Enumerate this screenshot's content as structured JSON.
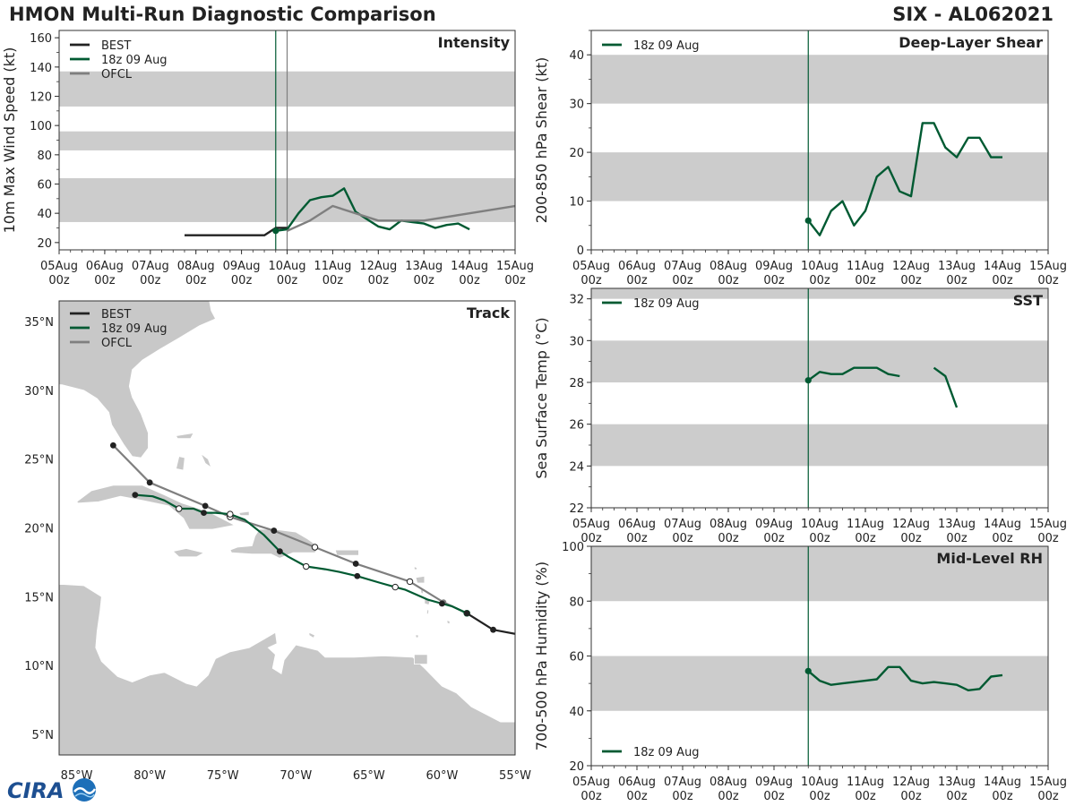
{
  "header": {
    "title": "HMON Multi-Run Diagnostic Comparison",
    "storm": "SIX - AL062021"
  },
  "logo": {
    "text": "CIRA"
  },
  "legend_labels": {
    "best": "BEST",
    "run": "18z 09 Aug",
    "ofcl": "OFCL"
  },
  "colors": {
    "best": "#222222",
    "run": "#005a32",
    "ofcl": "#7f7f7f",
    "band": "#cccccc",
    "land": "#c8c8c8",
    "axis": "#333333"
  },
  "chart_data": [
    {
      "id": "intensity",
      "type": "line",
      "title": "Intensity",
      "ylabel": "10m Max Wind Speed (kt)",
      "ylim": [
        15,
        165
      ],
      "yticks": [
        20,
        40,
        60,
        80,
        100,
        120,
        140,
        160
      ],
      "xlim": [
        0,
        10
      ],
      "xticks": [
        0,
        1,
        2,
        3,
        4,
        5,
        6,
        7,
        8,
        9,
        10
      ],
      "xtick_labels": [
        "05Aug\n00z",
        "06Aug\n00z",
        "07Aug\n00z",
        "08Aug\n00z",
        "09Aug\n00z",
        "10Aug\n00z",
        "11Aug\n00z",
        "12Aug\n00z",
        "13Aug\n00z",
        "14Aug\n00z",
        "15Aug\n00z"
      ],
      "bands": [
        [
          34,
          64
        ],
        [
          83,
          96
        ],
        [
          113,
          137
        ]
      ],
      "vlines": [
        {
          "x": 4.75,
          "color": "run"
        },
        {
          "x": 5.0,
          "color": "ofcl"
        }
      ],
      "legend": [
        "best",
        "run",
        "ofcl"
      ],
      "series": [
        {
          "key": "best",
          "name": "BEST",
          "x": [
            2.75,
            3.0,
            3.25,
            3.5,
            3.75,
            4.0,
            4.25,
            4.5,
            4.75,
            5.0
          ],
          "values": [
            25,
            25,
            25,
            25,
            25,
            25,
            25,
            25,
            30,
            30
          ]
        },
        {
          "key": "run",
          "name": "18z 09 Aug",
          "x": [
            4.75,
            5.0,
            5.25,
            5.5,
            5.75,
            6.0,
            6.25,
            6.5,
            6.75,
            7.0,
            7.25,
            7.5,
            7.75,
            8.0,
            8.25,
            8.5,
            8.75,
            9.0
          ],
          "values": [
            28,
            29,
            40,
            49,
            51,
            52,
            57,
            41,
            36,
            31,
            29,
            35,
            34,
            33,
            30,
            32,
            33,
            29
          ],
          "start_marker": true
        },
        {
          "key": "ofcl",
          "name": "OFCL",
          "x": [
            5.0,
            5.5,
            6.0,
            7.0,
            8.0,
            9.0,
            10.0
          ],
          "values": [
            28,
            35,
            45,
            35,
            35,
            40,
            45
          ]
        }
      ]
    },
    {
      "id": "shear",
      "type": "line",
      "title": "Deep-Layer Shear",
      "ylabel": "200-850 hPa Shear (kt)",
      "ylim": [
        0,
        45
      ],
      "yticks": [
        0,
        10,
        20,
        30,
        40
      ],
      "xlim": [
        0,
        10
      ],
      "xticks": [
        0,
        1,
        2,
        3,
        4,
        5,
        6,
        7,
        8,
        9,
        10
      ],
      "xtick_labels": [
        "05Aug\n00z",
        "06Aug\n00z",
        "07Aug\n00z",
        "08Aug\n00z",
        "09Aug\n00z",
        "10Aug\n00z",
        "11Aug\n00z",
        "12Aug\n00z",
        "13Aug\n00z",
        "14Aug\n00z",
        "15Aug\n00z"
      ],
      "bands": [
        [
          10,
          20
        ],
        [
          30,
          40
        ]
      ],
      "vlines": [
        {
          "x": 4.75,
          "color": "run"
        }
      ],
      "legend": [
        "run"
      ],
      "series": [
        {
          "key": "run",
          "name": "18z 09 Aug",
          "x": [
            4.75,
            5.0,
            5.25,
            5.5,
            5.75,
            6.0,
            6.25,
            6.5,
            6.75,
            7.0,
            7.25,
            7.5,
            7.75,
            8.0,
            8.25,
            8.5,
            8.75,
            9.0
          ],
          "values": [
            6,
            3,
            8,
            10,
            5,
            8,
            15,
            17,
            12,
            11,
            26,
            26,
            21,
            19,
            23,
            23,
            19,
            19
          ],
          "start_marker": true
        }
      ]
    },
    {
      "id": "sst",
      "type": "line",
      "title": "SST",
      "ylabel": "Sea Surface Temp (°C)",
      "ylim": [
        22,
        32.5
      ],
      "yticks": [
        22,
        24,
        26,
        28,
        30,
        32
      ],
      "xlim": [
        0,
        10
      ],
      "xticks": [
        0,
        1,
        2,
        3,
        4,
        5,
        6,
        7,
        8,
        9,
        10
      ],
      "xtick_labels": [
        "05Aug\n00z",
        "06Aug\n00z",
        "07Aug\n00z",
        "08Aug\n00z",
        "09Aug\n00z",
        "10Aug\n00z",
        "11Aug\n00z",
        "12Aug\n00z",
        "13Aug\n00z",
        "14Aug\n00z",
        "15Aug\n00z"
      ],
      "bands": [
        [
          24,
          26
        ],
        [
          28,
          30
        ],
        [
          32,
          34
        ]
      ],
      "vlines": [
        {
          "x": 4.75,
          "color": "run"
        }
      ],
      "legend": [
        "run"
      ],
      "series": [
        {
          "key": "run",
          "name": "18z 09 Aug",
          "x": [
            4.75,
            5.0,
            5.25,
            5.5,
            5.75,
            6.0,
            6.25,
            6.5,
            6.75
          ],
          "values": [
            28.1,
            28.5,
            28.4,
            28.4,
            28.7,
            28.7,
            28.7,
            28.4,
            28.3
          ],
          "start_marker": true
        },
        {
          "key": "run",
          "name": "18z 09 Aug",
          "x": [
            7.5,
            7.75,
            8.0
          ],
          "values": [
            28.7,
            28.3,
            26.8
          ]
        }
      ]
    },
    {
      "id": "rh",
      "type": "line",
      "title": "Mid-Level RH",
      "ylabel": "700-500 hPa Humidity (%)",
      "ylim": [
        20,
        100
      ],
      "yticks": [
        20,
        40,
        60,
        80,
        100
      ],
      "xlim": [
        0,
        10
      ],
      "xticks": [
        0,
        1,
        2,
        3,
        4,
        5,
        6,
        7,
        8,
        9,
        10
      ],
      "xtick_labels": [
        "05Aug\n00z",
        "06Aug\n00z",
        "07Aug\n00z",
        "08Aug\n00z",
        "09Aug\n00z",
        "10Aug\n00z",
        "11Aug\n00z",
        "12Aug\n00z",
        "13Aug\n00z",
        "14Aug\n00z",
        "15Aug\n00z"
      ],
      "bands": [
        [
          40,
          60
        ],
        [
          80,
          100
        ]
      ],
      "vlines": [
        {
          "x": 4.75,
          "color": "run"
        }
      ],
      "legend": [
        "run"
      ],
      "legend_position": "bottom-left",
      "series": [
        {
          "key": "run",
          "name": "18z 09 Aug",
          "x": [
            4.75,
            5.0,
            5.25,
            5.5,
            5.75,
            6.0,
            6.25,
            6.5,
            6.75,
            7.0,
            7.25,
            7.5,
            7.75,
            8.0,
            8.25,
            8.5,
            8.75,
            9.0
          ],
          "values": [
            54.5,
            51,
            49.5,
            50,
            50.5,
            51,
            51.5,
            56,
            56,
            51,
            50,
            50.5,
            50,
            49.5,
            47.5,
            48,
            52.5,
            53
          ],
          "start_marker": true
        }
      ]
    },
    {
      "id": "track",
      "type": "scatter",
      "title": "Track",
      "xlim": [
        -86.2,
        -55
      ],
      "ylim": [
        3.5,
        36.5
      ],
      "xticks": [
        -85,
        -80,
        -75,
        -70,
        -65,
        -60,
        -55
      ],
      "xtick_labels": [
        "85°W",
        "80°W",
        "75°W",
        "70°W",
        "65°W",
        "60°W",
        "55°W"
      ],
      "yticks": [
        5,
        10,
        15,
        20,
        25,
        30,
        35
      ],
      "ytick_labels": [
        "5°N",
        "10°N",
        "15°N",
        "20°N",
        "25°N",
        "30°N",
        "35°N"
      ],
      "legend": [
        "best",
        "run",
        "ofcl"
      ],
      "series": [
        {
          "key": "best",
          "name": "BEST",
          "lon": [
            -58.3,
            -56.5,
            -55.0
          ],
          "lat": [
            13.8,
            12.6,
            12.3
          ],
          "markers": [
            1,
            1,
            0
          ]
        },
        {
          "key": "run",
          "name": "18z 09 Aug",
          "lon": [
            -58.3,
            -59.3,
            -60.0,
            -61.0,
            -62.5,
            -63.2,
            -64.2,
            -65.8,
            -67.0,
            -68.0,
            -69.3,
            -70.5,
            -71.1,
            -72.2,
            -73.5,
            -74.5,
            -75.5,
            -76.3,
            -77.0,
            -78.0,
            -79.0,
            -79.8,
            -81.0
          ],
          "lat": [
            13.8,
            14.3,
            14.5,
            14.8,
            15.5,
            15.7,
            16.0,
            16.5,
            16.8,
            17.0,
            17.2,
            17.9,
            18.3,
            19.5,
            20.6,
            21.0,
            21.1,
            21.1,
            21.4,
            21.4,
            22.0,
            22.3,
            22.4
          ],
          "markers": [
            2,
            0,
            1,
            0,
            0,
            4,
            0,
            1,
            0,
            0,
            4,
            0,
            1,
            0,
            0,
            4,
            0,
            1,
            0,
            4,
            0,
            0,
            1
          ]
        },
        {
          "key": "ofcl",
          "name": "OFCL",
          "lon": [
            -58.3,
            -59.9,
            -62.2,
            -65.9,
            -68.7,
            -71.5,
            -74.5,
            -76.2,
            -80.0,
            -82.5
          ],
          "lat": [
            13.8,
            14.6,
            16.1,
            17.4,
            18.6,
            19.8,
            20.8,
            21.6,
            23.3,
            26.0
          ],
          "markers": [
            0,
            3,
            4,
            1,
            4,
            1,
            4,
            1,
            1,
            1
          ]
        }
      ]
    }
  ]
}
